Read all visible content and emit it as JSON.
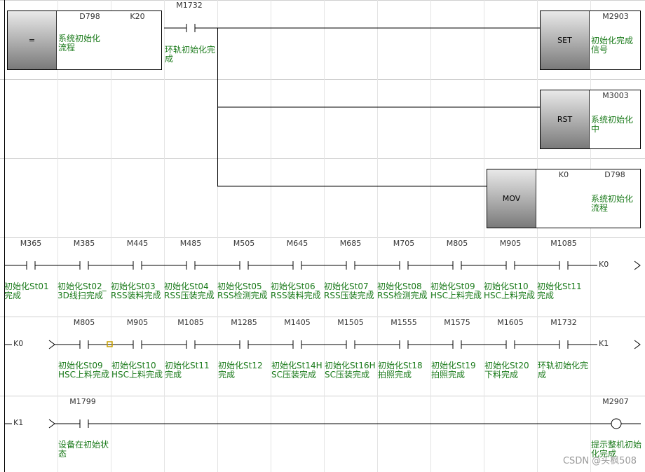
{
  "rung1": {
    "compare": {
      "func": "=",
      "s1": "D798",
      "s2": "K20",
      "comment": "系统初始化流程"
    },
    "contact": {
      "address": "M1732",
      "comment": "环轨初始化完成"
    },
    "outputs": [
      {
        "func": "SET",
        "address": "M2903",
        "comment": "初始化完成信号"
      },
      {
        "func": "RST",
        "address": "M3003",
        "comment": "系统初始化中"
      },
      {
        "func": "MOV",
        "s1": "K0",
        "s2": "D798",
        "comment": "系统初始化流程"
      }
    ]
  },
  "rung2": {
    "contacts": [
      {
        "address": "M365",
        "comment": "初始化St01完成"
      },
      {
        "address": "M385",
        "comment": "初始化St02_3D线扫完成"
      },
      {
        "address": "M445",
        "comment": "初始化St03_RSS装料完成"
      },
      {
        "address": "M485",
        "comment": "初始化St04_RSS压装完成"
      },
      {
        "address": "M505",
        "comment": "初始化St05_RSS检测完成"
      },
      {
        "address": "M645",
        "comment": "初始化St06_RSS装料完成"
      },
      {
        "address": "M685",
        "comment": "初始化St07_RSS压装完成"
      },
      {
        "address": "M705",
        "comment": "初始化St08_RSS检测完成"
      },
      {
        "address": "M805",
        "comment": "初始化St09_HSC上料完成"
      },
      {
        "address": "M905",
        "comment": "初始化St10_HSC上料完成"
      },
      {
        "address": "M1085",
        "comment": "初始化St11完成"
      }
    ],
    "jump": "K0"
  },
  "rung3": {
    "entry": "K0",
    "contacts": [
      {
        "address": "M805",
        "comment": "初始化St09_HSC上料完成"
      },
      {
        "address": "M905",
        "comment": "初始化St10_HSC上料完成"
      },
      {
        "address": "M1085",
        "comment": "初始化St11完成"
      },
      {
        "address": "M1285",
        "comment": "初始化St12完成"
      },
      {
        "address": "M1405",
        "comment": "初始化St14HSC压装完成"
      },
      {
        "address": "M1505",
        "comment": "初始化St16HSC压装完成"
      },
      {
        "address": "M1555",
        "comment": "初始化St18拍照完成"
      },
      {
        "address": "M1575",
        "comment": "初始化St19拍照完成"
      },
      {
        "address": "M1605",
        "comment": "初始化St20下料完成"
      },
      {
        "address": "M1732",
        "comment": "环轨初始化完成"
      }
    ],
    "jump": "K1"
  },
  "rung4": {
    "entry": "K1",
    "contact": {
      "address": "M1799",
      "comment": "设备在初始状态"
    },
    "coil": {
      "address": "M2907",
      "comment": "提示整机初始化完成"
    }
  },
  "watermark": "CSDN @头枫508",
  "colors": {
    "comment": "#1a7a1a",
    "line": "#000000",
    "cursor": "#c8a000"
  }
}
